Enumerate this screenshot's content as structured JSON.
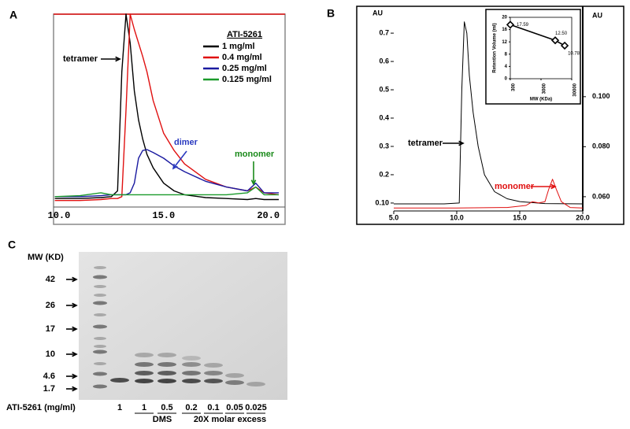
{
  "chart_data": [
    {
      "type": "line",
      "panel": "A",
      "x": [
        9.8,
        11,
        12,
        12.5,
        12.8,
        13,
        13.2,
        13.4,
        13.6,
        13.8,
        14,
        14.2,
        14.5,
        15,
        15.5,
        16,
        17,
        18,
        19,
        19.4,
        19.8,
        20.5
      ],
      "xlim": [
        9.74,
        20.8
      ],
      "xticks": [
        {
          "value": 10,
          "label": "10.0"
        },
        {
          "value": 15,
          "label": "15.0"
        },
        {
          "value": 20,
          "label": "20.0"
        }
      ],
      "ylim": [
        0,
        100
      ],
      "legend_title": "ATI-5261",
      "series": [
        {
          "name": "1 mg/ml",
          "color": "#000000",
          "values": [
            4,
            4,
            4.5,
            5,
            8,
            70,
            100,
            85,
            60,
            45,
            35,
            27,
            20,
            12,
            8,
            6,
            4.5,
            4,
            3.5,
            4,
            3.5,
            3.5
          ]
        },
        {
          "name": "0.4 mg/ml",
          "color": "#e01010",
          "values": [
            3,
            3,
            3.5,
            4,
            4,
            5,
            50,
            100,
            92,
            85,
            78,
            70,
            55,
            38,
            29,
            22,
            14,
            10,
            8,
            10,
            7,
            6
          ]
        },
        {
          "name": "0.25 mg/ml",
          "color": "#1a1aa0",
          "values": [
            5,
            5,
            5.5,
            6,
            6,
            6,
            6,
            7,
            12,
            25,
            29,
            29.5,
            28,
            25,
            21,
            18,
            13,
            10,
            8,
            12,
            7,
            7
          ]
        },
        {
          "name": "0.125 mg/ml",
          "color": "#1a9a2a",
          "values": [
            5,
            5.5,
            7,
            6,
            6,
            6,
            6,
            6,
            6,
            6,
            6,
            6,
            6,
            6,
            6,
            6,
            6,
            6,
            7,
            10,
            6,
            6
          ]
        }
      ],
      "annotations": [
        {
          "text": "tetramer",
          "color": "#000000"
        },
        {
          "text": "dimer",
          "color": "#2a3ac0"
        },
        {
          "text": "monomer",
          "color": "#1a8a1a"
        }
      ]
    },
    {
      "type": "line",
      "panel": "B",
      "xlim": [
        5,
        20
      ],
      "xticks": [
        {
          "value": 5,
          "label": "5.0"
        },
        {
          "value": 10,
          "label": "10.0"
        },
        {
          "value": 15,
          "label": "15.0"
        },
        {
          "value": 20,
          "label": "20.0"
        }
      ],
      "ylim": [
        0.072,
        0.767
      ],
      "yticks": [
        {
          "value": 0.1,
          "label": "0.10"
        },
        0.2,
        0.3,
        0.4,
        0.5,
        0.6,
        0.7
      ],
      "ylabel": "AU",
      "y2lim": [
        0.0543,
        0.133
      ],
      "y2ticks": [
        {
          "value": 0.06,
          "label": "0.060"
        },
        {
          "value": 0.08,
          "label": "0.080"
        },
        {
          "value": 0.1,
          "label": "0.100"
        }
      ],
      "y2label": "AU",
      "series": [
        {
          "color": "#000000",
          "x": [
            5,
            9,
            10.2,
            10.4,
            10.6,
            10.8,
            11,
            11.3,
            11.7,
            12.2,
            13,
            14,
            15,
            17,
            20
          ],
          "values": [
            0.097,
            0.097,
            0.1,
            0.5,
            0.74,
            0.7,
            0.55,
            0.42,
            0.3,
            0.2,
            0.14,
            0.115,
            0.105,
            0.098,
            0.097
          ]
        },
        {
          "color": "#e01010",
          "axis": "y2",
          "x": [
            5,
            10,
            14,
            15.5,
            16,
            16.5,
            17,
            17.3,
            17.6,
            17.9,
            18.3,
            19,
            20
          ],
          "values": [
            0.0555,
            0.0555,
            0.0557,
            0.0565,
            0.058,
            0.0575,
            0.058,
            0.063,
            0.067,
            0.063,
            0.058,
            0.0557,
            0.0555
          ]
        }
      ],
      "annotations": [
        {
          "text": "tetramer",
          "color": "#000000"
        },
        {
          "text": "monomer",
          "color": "#e01010"
        }
      ]
    },
    {
      "type": "line",
      "xscale": "log",
      "xlim": [
        300,
        30000
      ],
      "xticks": [
        300,
        3000,
        30000
      ],
      "ylim": [
        0,
        20
      ],
      "yticks": [
        0,
        4,
        8,
        12,
        16,
        20
      ],
      "xlabel": "MW (KDa)",
      "ylabel": "Retention Volume (ml)",
      "series": [
        {
          "color": "#000000",
          "marker": "diamond",
          "x": [
            300,
            8700,
            17700
          ],
          "values": [
            17.59,
            12.5,
            10.78
          ],
          "value_labels": [
            "17.59",
            "12.50",
            "10.78"
          ]
        }
      ]
    }
  ],
  "gel": {
    "panel": "C",
    "mw_label": "MW (KD)",
    "markers": [
      "42",
      "26",
      "17",
      "10",
      "4.6",
      "1.7"
    ],
    "sample_label": "ATI-5261 (mg/ml)",
    "lanes": [
      "1",
      "1",
      "0.5",
      "0.2",
      "0.1",
      "0.05",
      "0.025"
    ],
    "group_labels": [
      "DMS",
      "20X molar excess"
    ]
  }
}
